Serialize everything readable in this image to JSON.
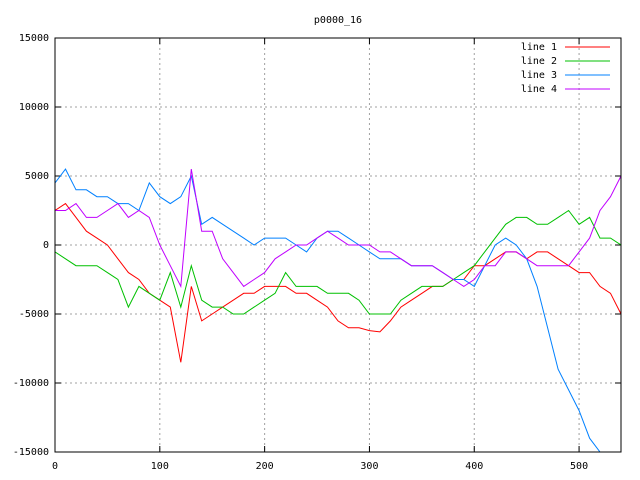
{
  "chart_data": {
    "type": "line",
    "title": "p0000_16",
    "x": [
      0,
      10,
      20,
      30,
      40,
      50,
      60,
      70,
      80,
      90,
      100,
      110,
      120,
      130,
      140,
      150,
      160,
      170,
      180,
      190,
      200,
      210,
      220,
      230,
      240,
      250,
      260,
      270,
      280,
      290,
      300,
      310,
      320,
      330,
      340,
      350,
      360,
      370,
      380,
      390,
      400,
      410,
      420,
      430,
      440,
      450,
      460,
      470,
      480,
      490,
      500,
      510,
      520,
      530,
      540
    ],
    "series": [
      {
        "name": "line 1",
        "color": "#ff0000",
        "values": [
          2500,
          3000,
          2000,
          1000,
          500,
          0,
          -1000,
          -2000,
          -2500,
          -3500,
          -4000,
          -4500,
          -8500,
          -3000,
          -5500,
          -5000,
          -4500,
          -4000,
          -3500,
          -3500,
          -3000,
          -3000,
          -3000,
          -3500,
          -3500,
          -4000,
          -4500,
          -5500,
          -6000,
          -6000,
          -6200,
          -6300,
          -5500,
          -4500,
          -4000,
          -3500,
          -3000,
          -3000,
          -2500,
          -2500,
          -1500,
          -1500,
          -1000,
          -500,
          -500,
          -1000,
          -500,
          -500,
          -1000,
          -1500,
          -2000,
          -2000,
          -3000,
          -3500,
          -5000
        ]
      },
      {
        "name": "line 2",
        "color": "#00c000",
        "values": [
          -500,
          -1000,
          -1500,
          -1500,
          -1500,
          -2000,
          -2500,
          -4500,
          -3000,
          -3500,
          -4000,
          -2000,
          -4500,
          -1500,
          -4000,
          -4500,
          -4500,
          -5000,
          -5000,
          -4500,
          -4000,
          -3500,
          -2000,
          -3000,
          -3000,
          -3000,
          -3500,
          -3500,
          -3500,
          -4000,
          -5000,
          -5000,
          -5000,
          -4000,
          -3500,
          -3000,
          -3000,
          -3000,
          -2500,
          -2000,
          -1500,
          -500,
          500,
          1500,
          2000,
          2000,
          1500,
          1500,
          2000,
          2500,
          1500,
          2000,
          500,
          500,
          0
        ]
      },
      {
        "name": "line 3",
        "color": "#0080ff",
        "values": [
          4500,
          5500,
          4000,
          4000,
          3500,
          3500,
          3000,
          3000,
          2500,
          4500,
          3500,
          3000,
          3500,
          5000,
          1500,
          2000,
          1500,
          1000,
          500,
          0,
          500,
          500,
          500,
          0,
          -500,
          500,
          1000,
          1000,
          500,
          0,
          -500,
          -1000,
          -1000,
          -1000,
          -1500,
          -1500,
          -1500,
          -2000,
          -2500,
          -2500,
          -3000,
          -1500,
          0,
          500,
          0,
          -1000,
          -3000,
          -6000,
          -9000,
          -10500,
          -12000,
          -14000,
          -15000,
          null,
          null
        ]
      },
      {
        "name": "line 4",
        "color": "#c000ff",
        "values": [
          2500,
          2500,
          3000,
          2000,
          2000,
          2500,
          3000,
          2000,
          2500,
          2000,
          0,
          -1500,
          -3000,
          5500,
          1000,
          1000,
          -1000,
          -2000,
          -3000,
          -2500,
          -2000,
          -1000,
          -500,
          0,
          0,
          500,
          1000,
          500,
          0,
          0,
          0,
          -500,
          -500,
          -1000,
          -1500,
          -1500,
          -1500,
          -2000,
          -2500,
          -3000,
          -2500,
          -1500,
          -1500,
          -500,
          -500,
          -1000,
          -1500,
          -1500,
          -1500,
          -1500,
          -500,
          500,
          2500,
          3500,
          5000
        ]
      }
    ],
    "xlim": [
      0,
      540
    ],
    "xticks": [
      0,
      100,
      200,
      300,
      400,
      500
    ],
    "ylim": [
      -15000,
      15000
    ],
    "yticks": [
      -15000,
      -10000,
      -5000,
      0,
      5000,
      10000,
      15000
    ],
    "grid": true,
    "legend": "top-right"
  }
}
